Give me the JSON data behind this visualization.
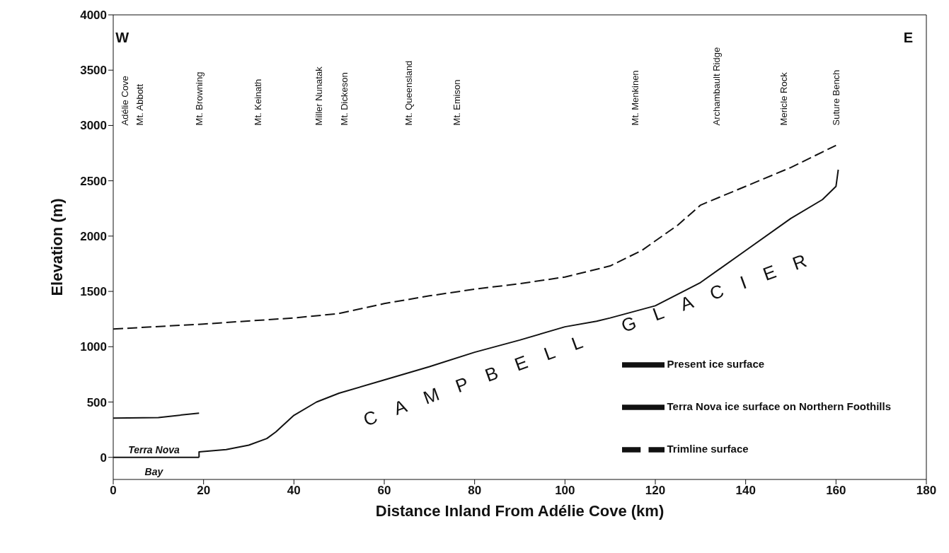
{
  "chart_data": {
    "type": "line",
    "xlabel": "Distance Inland From Adélie Cove (km)",
    "ylabel": "Elevation (m)",
    "xlim": [
      0,
      180
    ],
    "xticks": [
      0,
      20,
      40,
      60,
      80,
      100,
      120,
      140,
      160,
      180
    ],
    "ylim": [
      -200,
      4000
    ],
    "yticks": [
      0,
      500,
      1000,
      1500,
      2000,
      2500,
      3000,
      3500,
      4000
    ],
    "legend": "bottom right",
    "marker": "none",
    "series": [
      {
        "name": "Trimline surface",
        "color": "#111111",
        "line_style": "dashed",
        "x": [
          0,
          20,
          40,
          50,
          60,
          70,
          80,
          90,
          100,
          110,
          117,
          125,
          130,
          140,
          150,
          160
        ],
        "values": [
          1160,
          1205,
          1260,
          1300,
          1390,
          1460,
          1520,
          1570,
          1630,
          1730,
          1870,
          2100,
          2280,
          2450,
          2620,
          2820
        ]
      },
      {
        "name": "Terra Nova ice surface on Northern Foothills",
        "color": "#111111",
        "line_style": "solid",
        "x": [
          0,
          10,
          19
        ],
        "values": [
          355,
          360,
          400
        ]
      },
      {
        "name": "Present ice surface",
        "color": "#111111",
        "line_style": "solid",
        "x": [
          19,
          19,
          25,
          30,
          34,
          36,
          40,
          45,
          50,
          60,
          70,
          80,
          90,
          100,
          107,
          110,
          120,
          130,
          140,
          150,
          157,
          160,
          160.5
        ],
        "values": [
          0,
          50,
          70,
          110,
          170,
          230,
          380,
          500,
          580,
          700,
          820,
          950,
          1060,
          1180,
          1230,
          1260,
          1370,
          1580,
          1870,
          2160,
          2330,
          2450,
          2600
        ]
      },
      {
        "color": "#111111",
        "line_style": "solid",
        "x": [
          0,
          19
        ],
        "values": [
          0,
          0
        ]
      }
    ],
    "annotations": [
      "Adélie Cove",
      "Mt. Abbott",
      "Mt. Browning",
      "Mt. Keinath",
      "Miller Nunatak",
      "Mt. Dickeson",
      "Mt. Queensland",
      "Mt. Emison",
      "Mt. Menkinen",
      "Archambault Ridge",
      "Mericle Rock",
      "Suture Bench",
      "W",
      "E",
      "Terra Nova",
      "Bay",
      "CAMPBELL GLACIER"
    ]
  }
}
